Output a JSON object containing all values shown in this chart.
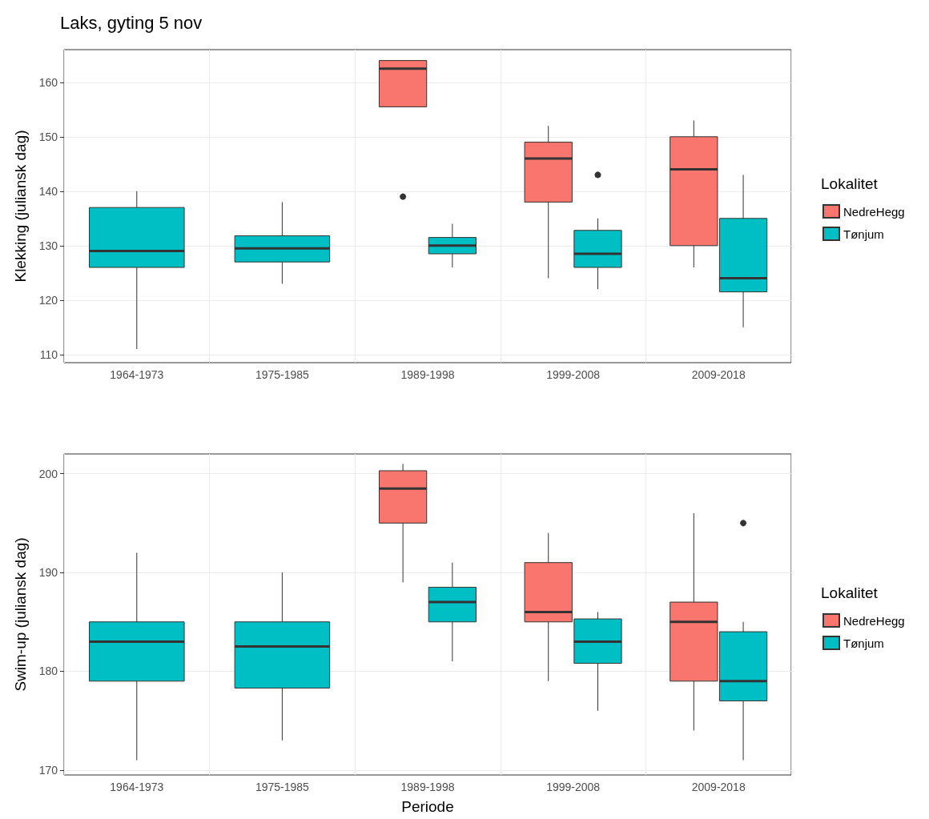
{
  "chart_data": [
    {
      "type": "box",
      "title": "Laks, gyting 5 nov",
      "ylabel": "Klekking (juliansk dag)",
      "legend_title": "Lokalitet",
      "legend": "right",
      "grid": true,
      "categories": [
        "1964-1973",
        "1975-1985",
        "1989-1998",
        "1999-2008",
        "2009-2018"
      ],
      "ylim": [
        108.5,
        166
      ],
      "yticks": [
        110,
        120,
        130,
        140,
        150,
        160
      ],
      "series": [
        {
          "name": "NedreHegg",
          "color": "#f8766d",
          "boxes": [
            null,
            null,
            {
              "low": 155.5,
              "q1": 155.5,
              "median": 162.5,
              "q3": 164,
              "high": 164,
              "outliers": [
                139
              ]
            },
            {
              "low": 124,
              "q1": 138,
              "median": 146,
              "q3": 149,
              "high": 152
            },
            {
              "low": 126,
              "q1": 130,
              "median": 144,
              "q3": 150,
              "high": 153
            }
          ]
        },
        {
          "name": "Tønjum",
          "color": "#00bfc4",
          "boxes": [
            {
              "low": 111,
              "q1": 126,
              "median": 129,
              "q3": 137,
              "high": 140
            },
            {
              "low": 123,
              "q1": 127,
              "median": 129.5,
              "q3": 131.8,
              "high": 138
            },
            {
              "low": 126,
              "q1": 128.5,
              "median": 130,
              "q3": 131.5,
              "high": 134
            },
            {
              "low": 122,
              "q1": 126,
              "median": 128.5,
              "q3": 132.8,
              "high": 135,
              "outliers": [
                143
              ]
            },
            {
              "low": 115,
              "q1": 121.5,
              "median": 124,
              "q3": 135,
              "high": 143
            }
          ]
        }
      ]
    },
    {
      "type": "box",
      "xlabel": "Periode",
      "ylabel": "Swim-up (juliansk dag)",
      "legend_title": "Lokalitet",
      "legend": "right",
      "grid": true,
      "categories": [
        "1964-1973",
        "1975-1985",
        "1989-1998",
        "1999-2008",
        "2009-2018"
      ],
      "ylim": [
        169.5,
        202
      ],
      "yticks": [
        170,
        180,
        190,
        200
      ],
      "series": [
        {
          "name": "NedreHegg",
          "color": "#f8766d",
          "boxes": [
            null,
            null,
            {
              "low": 189,
              "q1": 195,
              "median": 198.5,
              "q3": 200.3,
              "high": 201
            },
            {
              "low": 179,
              "q1": 185,
              "median": 186,
              "q3": 191,
              "high": 194
            },
            {
              "low": 174,
              "q1": 179,
              "median": 185,
              "q3": 187,
              "high": 196
            }
          ]
        },
        {
          "name": "Tønjum",
          "color": "#00bfc4",
          "boxes": [
            {
              "low": 171,
              "q1": 179,
              "median": 183,
              "q3": 185,
              "high": 192
            },
            {
              "low": 173,
              "q1": 178.3,
              "median": 182.5,
              "q3": 185,
              "high": 190
            },
            {
              "low": 181,
              "q1": 185,
              "median": 187,
              "q3": 188.5,
              "high": 191
            },
            {
              "low": 176,
              "q1": 180.8,
              "median": 183,
              "q3": 185.3,
              "high": 186
            },
            {
              "low": 171,
              "q1": 177,
              "median": 179,
              "q3": 184,
              "high": 185,
              "outliers": [
                195
              ]
            }
          ]
        }
      ]
    }
  ]
}
